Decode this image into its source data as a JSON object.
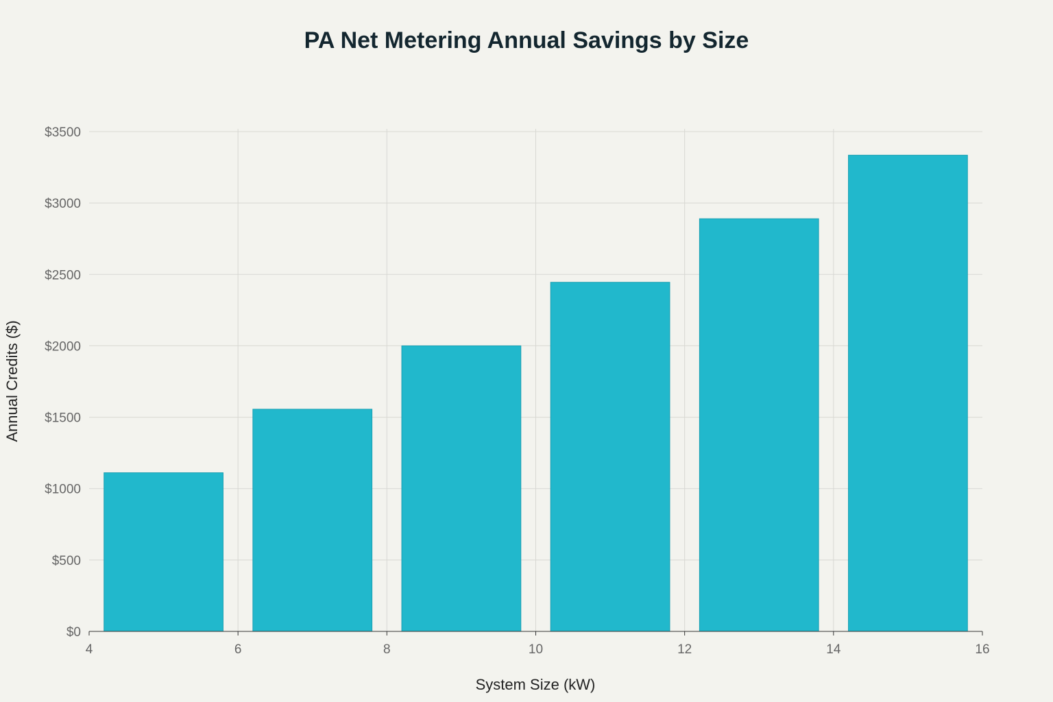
{
  "chart_data": {
    "type": "bar",
    "title": "PA Net Metering Annual Savings by Size",
    "xlabel": "System Size (kW)",
    "ylabel": "Annual Credits ($)",
    "x": [
      5,
      7,
      9,
      11,
      13,
      15
    ],
    "values": [
      1111,
      1556,
      2000,
      2445,
      2890,
      3335
    ],
    "bar_width_kw": 1.6,
    "xlim": [
      4,
      16
    ],
    "ylim": [
      0,
      3500
    ],
    "x_ticks": [
      4,
      6,
      8,
      10,
      12,
      14,
      16
    ],
    "y_ticks": [
      0,
      500,
      1000,
      1500,
      2000,
      2500,
      3000,
      3500
    ],
    "y_tick_labels": [
      "$0",
      "$500",
      "$1000",
      "$1500",
      "$2000",
      "$2500",
      "$3000",
      "$3500"
    ],
    "grid": true,
    "colors": {
      "bar": "#21b8cc",
      "bar_edge": "#1a9fb2",
      "grid": "#d8d8d3",
      "background": "#f3f3ee"
    }
  }
}
